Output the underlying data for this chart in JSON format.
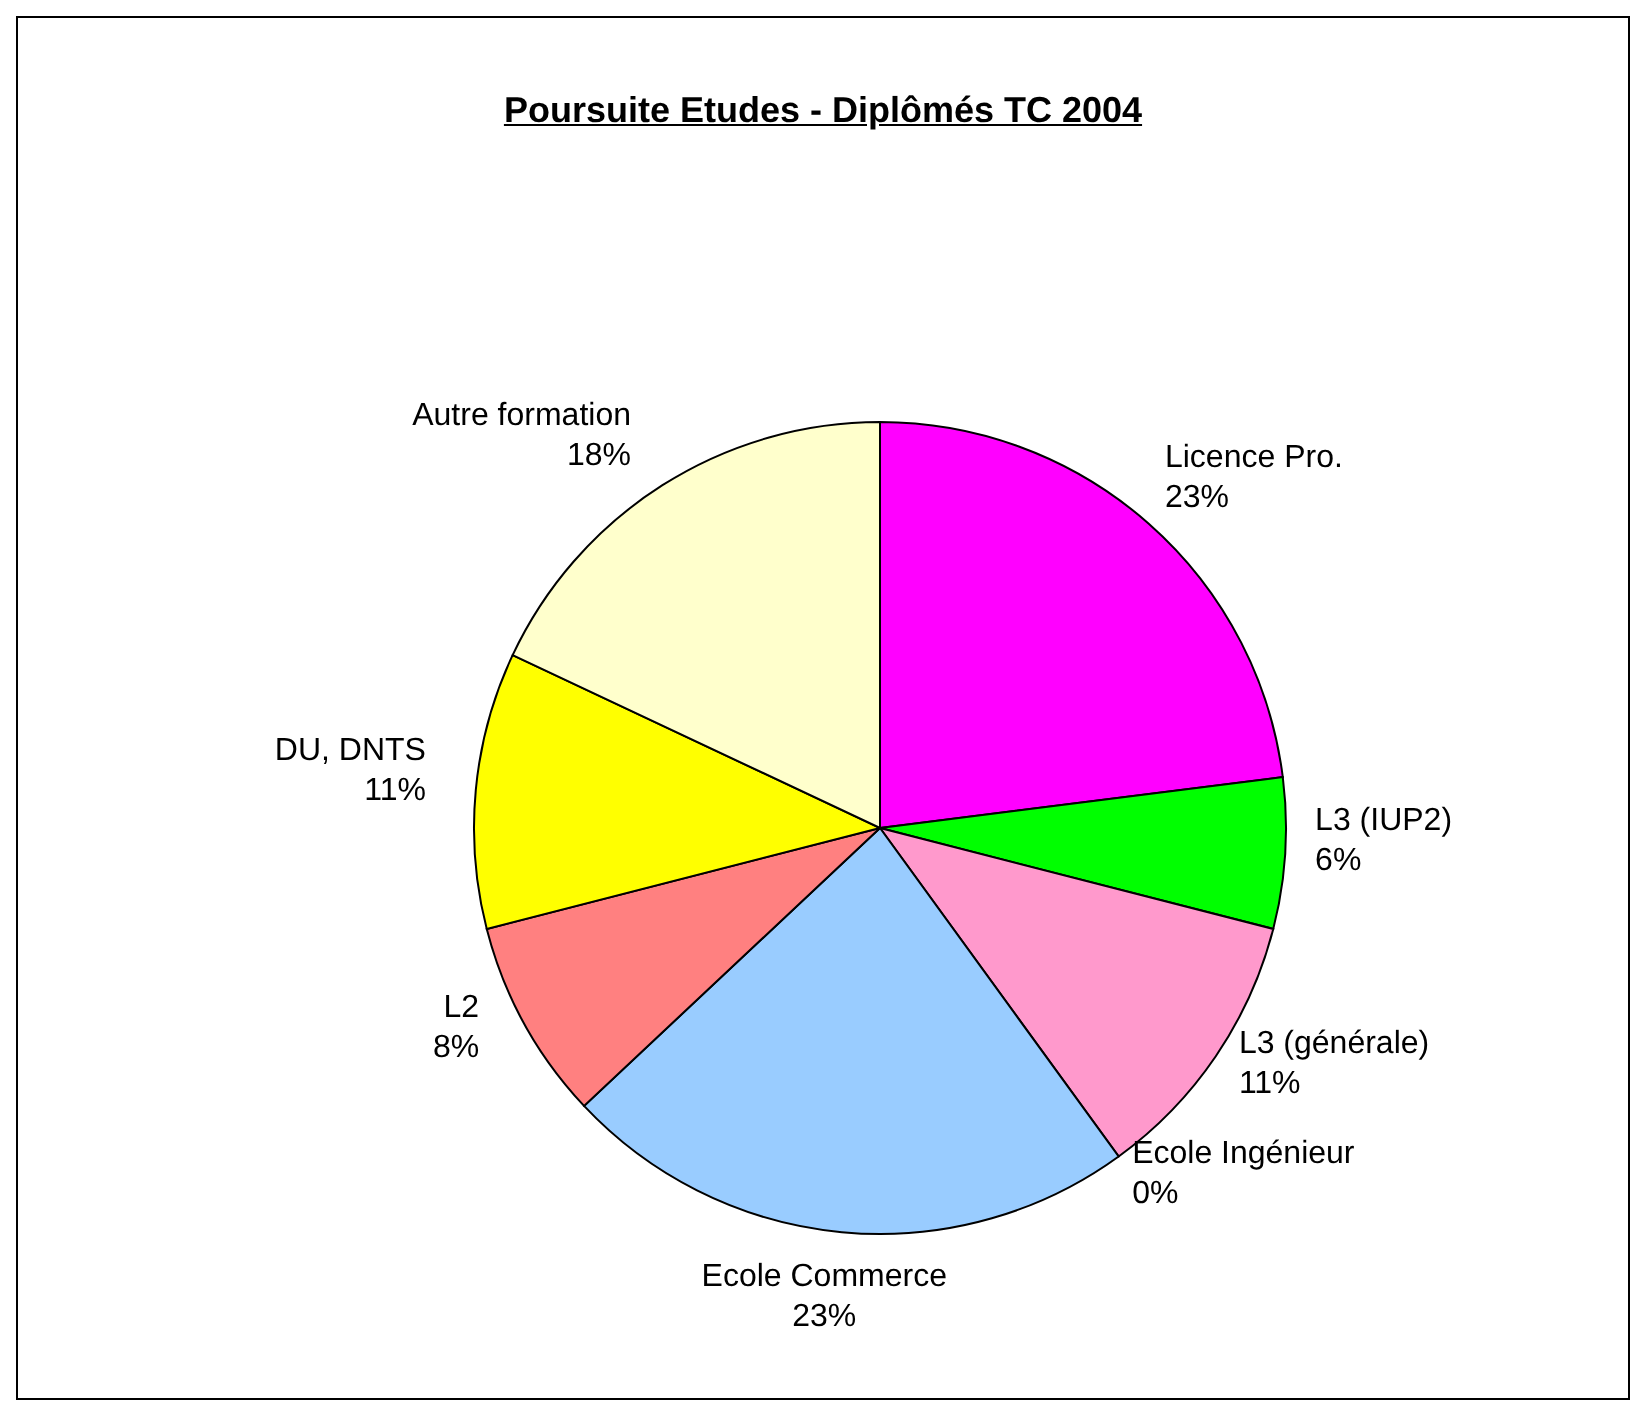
{
  "chart_data": {
    "type": "pie",
    "title": "Poursuite Etudes - Diplômés TC 2004",
    "categories": [
      "Licence Pro.",
      "L3 (IUP2)",
      "L3 (générale)",
      "Ecole Ingénieur",
      "Ecole Commerce",
      "L2",
      "DU, DNTS",
      "Autre formation"
    ],
    "values": [
      23,
      6,
      11,
      0,
      23,
      8,
      11,
      18
    ],
    "value_labels": [
      "23%",
      "6%",
      "11%",
      "0%",
      "23%",
      "8%",
      "11%",
      "18%"
    ],
    "colors": [
      "#ff00ff",
      "#00ff00",
      "#ff99cc",
      "#993366",
      "#99ccff",
      "#ff8080",
      "#ffff00",
      "#ffffcc"
    ],
    "legend": false
  }
}
